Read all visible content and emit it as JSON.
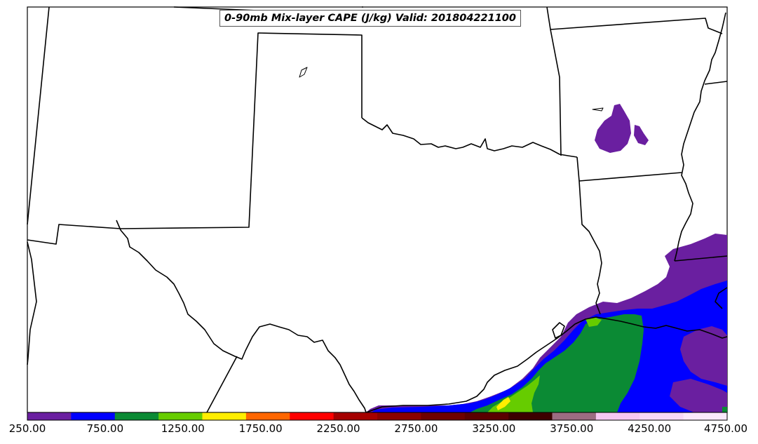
{
  "title": "0-90mb Mix-layer CAPE (J/kg) Valid: 201804221100",
  "legend": {
    "tick_labels": [
      "250.00",
      "750.00",
      "1250.00",
      "1750.00",
      "2250.00",
      "2750.00",
      "3250.00",
      "3750.00",
      "4250.00",
      "4750.00"
    ],
    "bin_colors": [
      "#6a1fa0",
      "#0000ff",
      "#0b8a34",
      "#66cc00",
      "#ffee00",
      "#ff6600",
      "#ff0000",
      "#a50000",
      "#8a0000",
      "#6e0000",
      "#5a0000",
      "#3c0000",
      "#9c6c82",
      "#f6c7f2",
      "#f8d8f8",
      "#fbe8fb"
    ]
  },
  "colors": {
    "cape_250": "#6a1fa0",
    "cape_750": "#0000ff",
    "cape_1000": "#0b8a34",
    "cape_1250": "#66cc00",
    "cape_1500": "#ffee00",
    "boundary": "#000000"
  }
}
